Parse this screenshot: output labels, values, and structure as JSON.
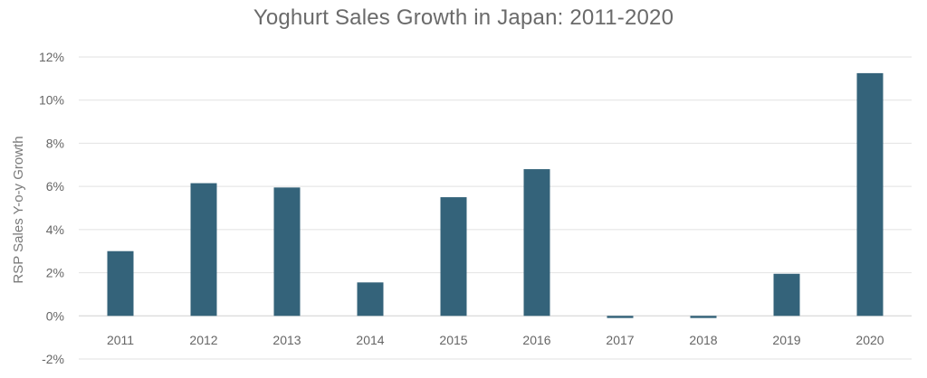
{
  "chart_data": {
    "type": "bar",
    "title": "Yoghurt Sales Growth in Japan: 2011-2020",
    "xlabel": "",
    "ylabel": "RSP Sales Y-o-y Growth",
    "categories": [
      "2011",
      "2012",
      "2013",
      "2014",
      "2015",
      "2016",
      "2017",
      "2018",
      "2019",
      "2020"
    ],
    "values": [
      3.0,
      6.15,
      5.95,
      1.55,
      5.5,
      6.8,
      -0.1,
      -0.1,
      1.95,
      11.25
    ],
    "value_unit": "%",
    "ylim": [
      -2,
      12
    ],
    "yticks": [
      -2,
      0,
      2,
      4,
      6,
      8,
      10,
      12
    ],
    "ytick_labels": [
      "-2%",
      "0%",
      "2%",
      "4%",
      "6%",
      "8%",
      "10%",
      "12%"
    ],
    "grid": true,
    "bar_color": "#34637a"
  }
}
